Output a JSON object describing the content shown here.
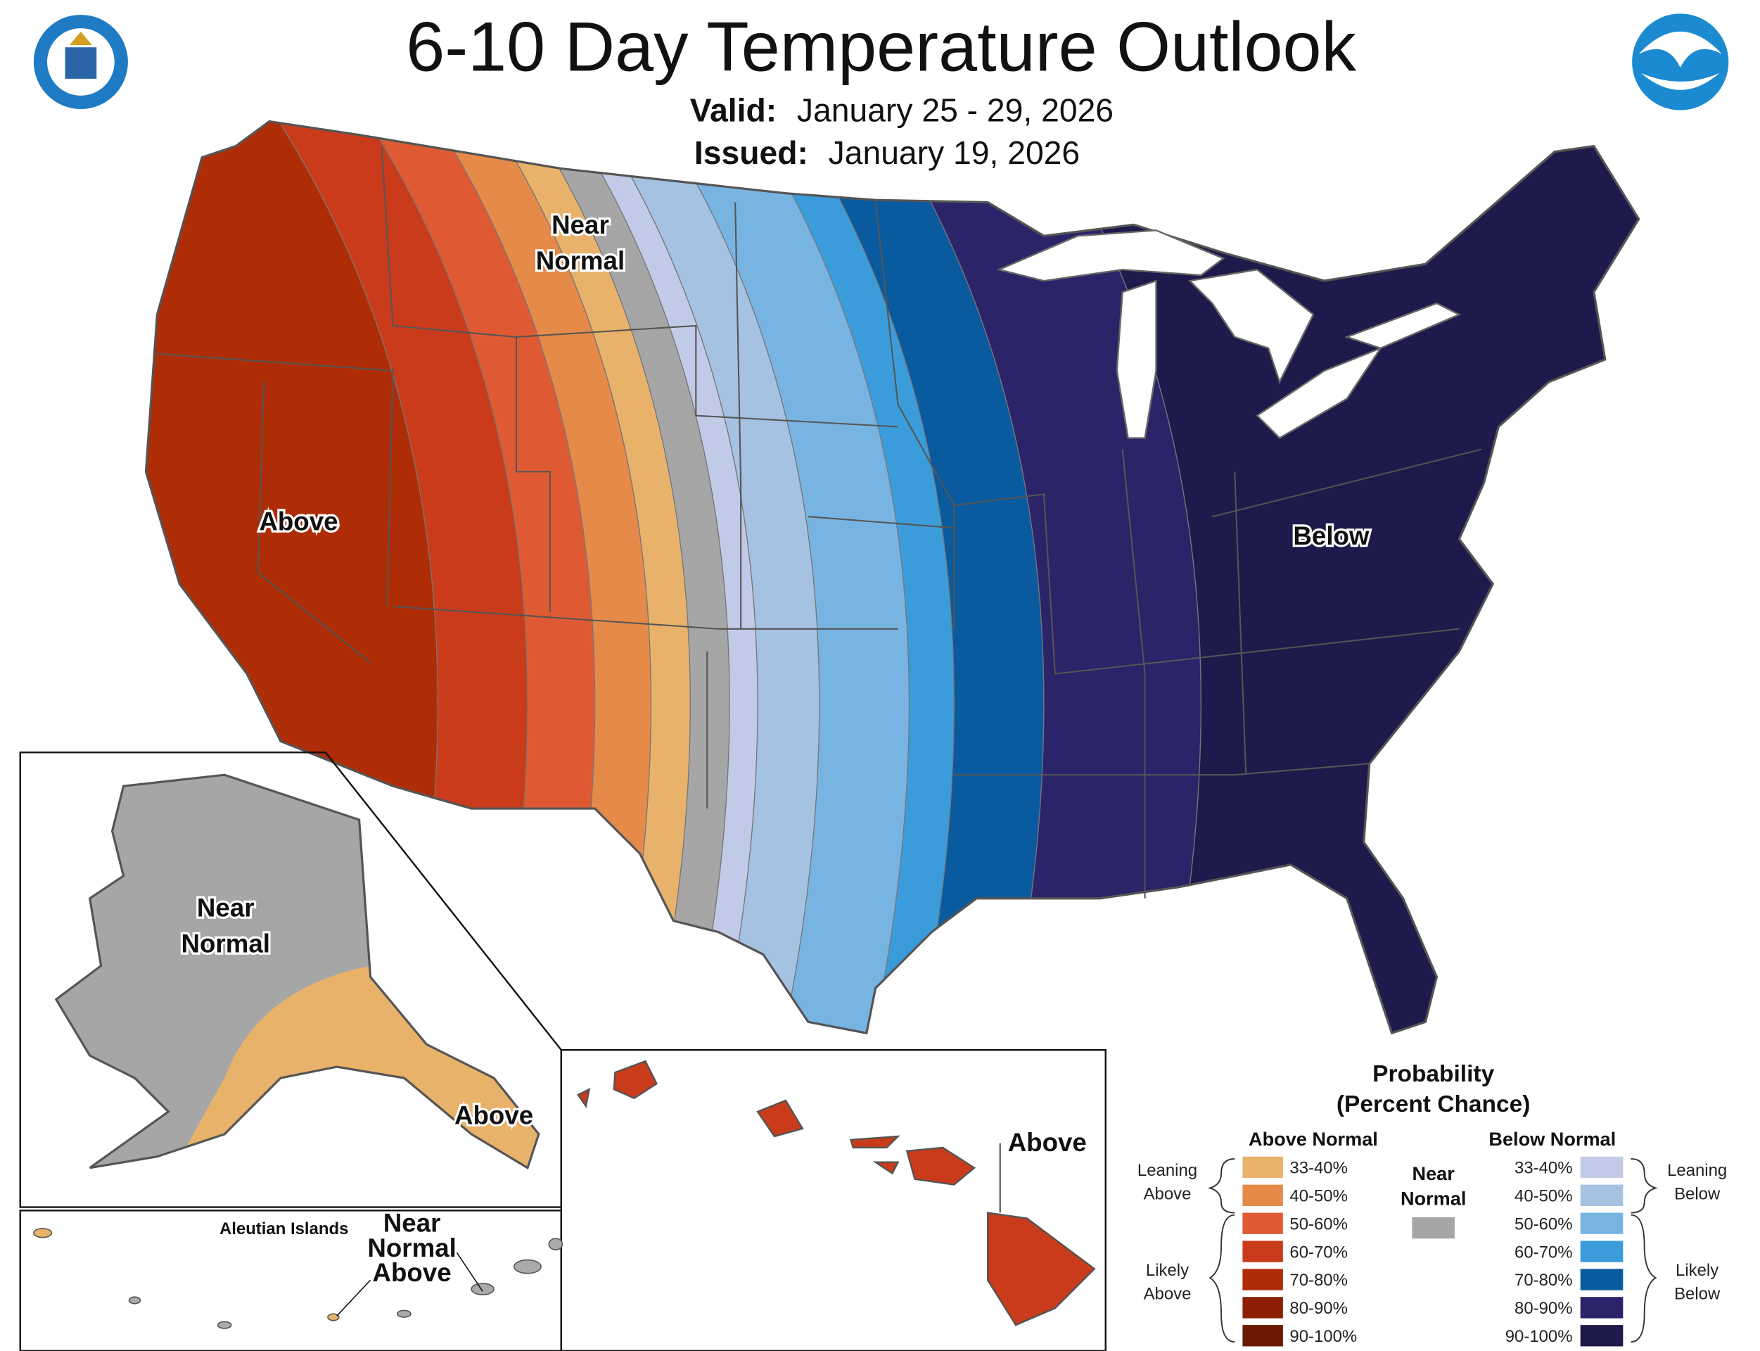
{
  "header": {
    "title": "6-10 Day Temperature Outlook",
    "valid_label": "Valid:",
    "valid": "January 25 - 29, 2026",
    "issued_label": "Issued:",
    "issued": "January 19, 2026"
  },
  "logos": {
    "noaa": "NOAA"
  },
  "map_labels": {
    "conus_near_normal": [
      "Near",
      "Normal"
    ],
    "conus_above": "Above",
    "conus_below": "Below",
    "alaska_near_normal": [
      "Near",
      "Normal"
    ],
    "alaska_above": "Above",
    "hawaii_above": "Above",
    "aleutian_title": "Aleutian Islands",
    "aleutian_outlook": [
      "Near",
      "Normal",
      "Above"
    ]
  },
  "legend": {
    "title": [
      "Probability",
      "(Percent Chance)"
    ],
    "above_heading": "Above Normal",
    "below_heading": "Below Normal",
    "near_normal": {
      "label": [
        "Near",
        "Normal"
      ],
      "color": "#a6a6a6"
    },
    "above": [
      {
        "label": "33-40%",
        "color": "#e9b26b"
      },
      {
        "label": "40-50%",
        "color": "#e68a4a"
      },
      {
        "label": "50-60%",
        "color": "#df5a33"
      },
      {
        "label": "60-70%",
        "color": "#c93b1b"
      },
      {
        "label": "70-80%",
        "color": "#ae2d06"
      },
      {
        "label": "80-90%",
        "color": "#8c1f03"
      },
      {
        "label": "90-100%",
        "color": "#6a1a00"
      }
    ],
    "below": [
      {
        "label": "33-40%",
        "color": "#c1cbe7"
      },
      {
        "label": "40-50%",
        "color": "#a5c2e2"
      },
      {
        "label": "50-60%",
        "color": "#78b4e2"
      },
      {
        "label": "60-70%",
        "color": "#3b9cdc"
      },
      {
        "label": "70-80%",
        "color": "#0a5aa0"
      },
      {
        "label": "80-90%",
        "color": "#2c2469"
      },
      {
        "label": "90-100%",
        "color": "#1e1a4b"
      }
    ],
    "groups": {
      "leaning_above": [
        "Leaning",
        "Above"
      ],
      "likely_above": [
        "Likely",
        "Above"
      ],
      "leaning_below": [
        "Leaning",
        "Below"
      ],
      "likely_below": [
        "Likely",
        "Below"
      ]
    }
  }
}
